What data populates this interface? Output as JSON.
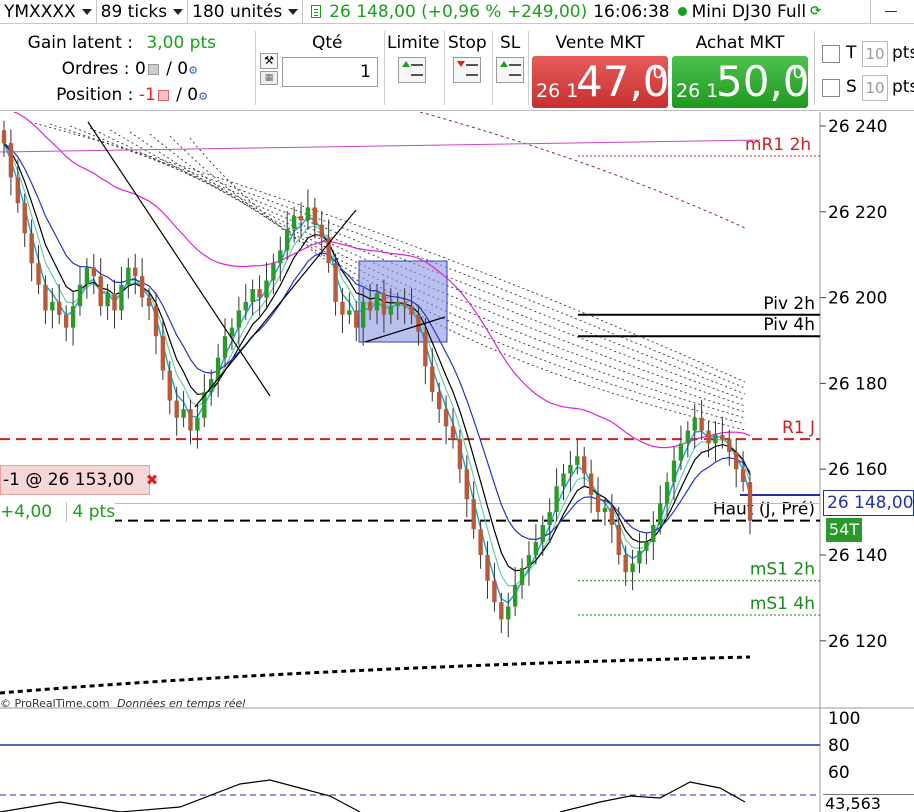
{
  "topbar": {
    "instrument_code": "YMXXXX",
    "ticks": "89 ticks",
    "units": "180 unités",
    "price_change": "26 148,00 (+0,96 % +249,00)",
    "time": "16:06:38",
    "instrument_name": "Mini DJ30 Full"
  },
  "panel": {
    "unrealized_label": "Gain latent :",
    "unrealized_value": "3,00 pts",
    "orders_label": "Ordres :",
    "orders_value_a": "0",
    "orders_value_b": "/ 0",
    "position_label": "Position :",
    "position_value_a": "-1",
    "position_value_b": "/ 0",
    "qty_label": "Qté",
    "qty_value": "1",
    "limit_label": "Limite",
    "stop_label": "Stop",
    "sl_label": "SL",
    "sell_title": "Vente MKT",
    "sell_prefix": "26 1",
    "sell_big": "47,0",
    "sell_sup": "0",
    "buy_title": "Achat MKT",
    "buy_prefix": "26 1",
    "buy_big": "50,0",
    "buy_sup": "0",
    "t_label": "T",
    "t_value": "10",
    "s_label": "S",
    "s_value": "10",
    "pts_label": "pts"
  },
  "chart": {
    "y_axis_ticks": [
      {
        "label": "26 240",
        "value": 26240
      },
      {
        "label": "26 220",
        "value": 26220
      },
      {
        "label": "26 200",
        "value": 26200
      },
      {
        "label": "26 180",
        "value": 26180
      },
      {
        "label": "26 160",
        "value": 26160
      },
      {
        "label": "26 140",
        "value": 26140
      },
      {
        "label": "26 120",
        "value": 26120
      }
    ],
    "levels": [
      {
        "label": "mR1 2h",
        "value": 26233,
        "color": "#d02020"
      },
      {
        "label": "Piv 2h",
        "value": 26196,
        "color": "#000000"
      },
      {
        "label": "Piv 4h",
        "value": 26191,
        "color": "#000000"
      },
      {
        "label": "R1 J",
        "value": 26167,
        "color": "#d02020"
      },
      {
        "label": "Haut (J, Pré)",
        "value": 26148,
        "color": "#000000"
      },
      {
        "label": "mS1 2h",
        "value": 26134,
        "color": "#1a8a1a"
      },
      {
        "label": "mS1 4h",
        "value": 26126,
        "color": "#1a8a1a"
      }
    ],
    "current_price": "26 148,00",
    "tick_count": "54T",
    "position_tag": "-1 @ 26 153,00",
    "pnl_pts": "+4,00",
    "pnl_pts2": "4 pts",
    "credit": "ProRealTime.com",
    "credit_sub": "Données en temps réel"
  },
  "oscillator": {
    "ticks": [
      "100",
      "80",
      "60"
    ],
    "value": "43,563"
  },
  "colors": {
    "up": "#2a9a2a",
    "down": "#b85a3a",
    "ma_fast": "#22aacc",
    "ma_blue": "#2233cc",
    "ma_magenta": "#dd22dd",
    "sell": "#d63a3a",
    "buy": "#22a022"
  }
}
